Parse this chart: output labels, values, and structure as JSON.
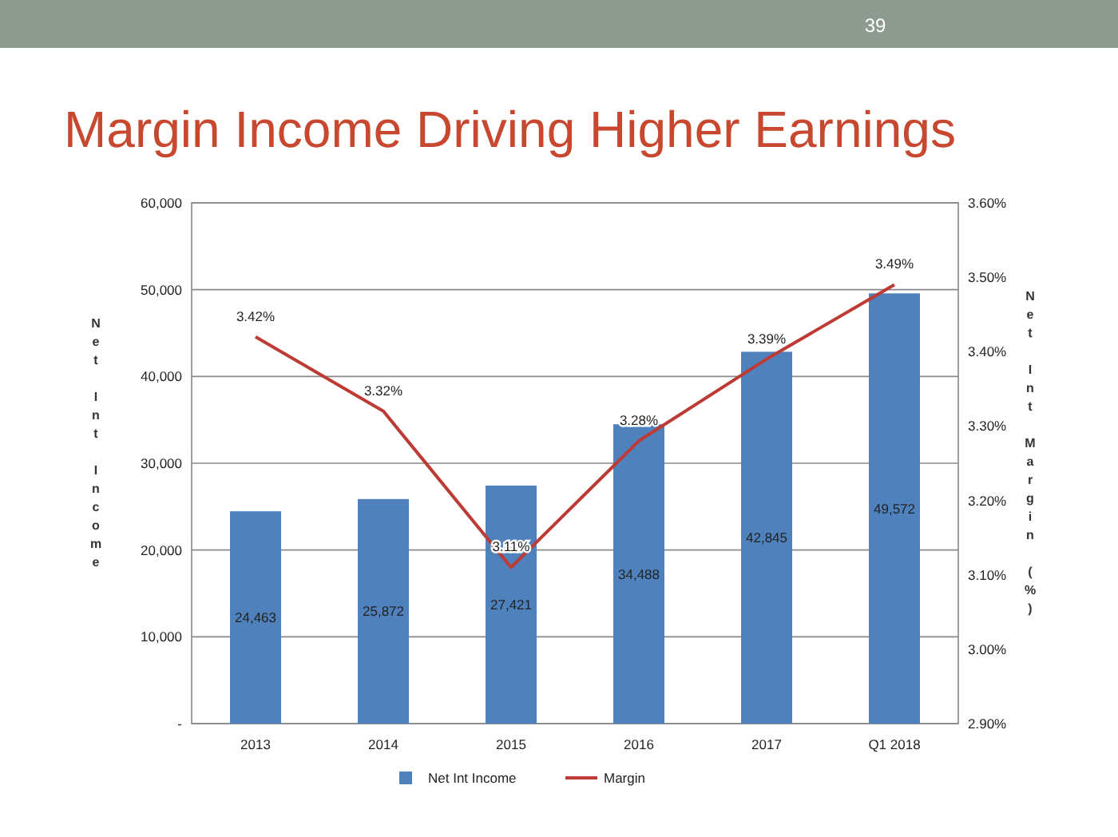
{
  "chart_data": {
    "type": "bar",
    "title": "Margin Income Driving Higher Earnings",
    "ylabel": "Net Int Income",
    "y2label": "Net Int Margin (%)",
    "annotations": [
      "39"
    ],
    "categories": [
      "2013",
      "2014",
      "2015",
      "2016",
      "2017",
      "Q1 2018"
    ],
    "series": [
      {
        "name": "Net Int Income",
        "color": "#4f81bd",
        "values": [
          24463,
          25872,
          27421,
          34488,
          42845,
          49572
        ],
        "value_labels": [
          "24,463",
          "25,872",
          "27,421",
          "34,488",
          "42,845",
          "49,572"
        ]
      },
      {
        "name": "Margin",
        "type": "line",
        "axis": "y2",
        "color": "#be3a34",
        "values": [
          3.42,
          3.32,
          3.11,
          3.28,
          3.39,
          3.49
        ],
        "value_labels": [
          "3.42%",
          "3.32%",
          "3.11%",
          "3.28%",
          "3.39%",
          "3.49%"
        ]
      }
    ],
    "ylim": [
      0,
      60000
    ],
    "yticks": [
      {
        "value": 0,
        "label": "-"
      },
      {
        "value": 10000,
        "label": "10,000"
      },
      {
        "value": 20000,
        "label": "20,000"
      },
      {
        "value": 30000,
        "label": "30,000"
      },
      {
        "value": 40000,
        "label": "40,000"
      },
      {
        "value": 50000,
        "label": "50,000"
      },
      {
        "value": 60000,
        "label": "60,000"
      }
    ],
    "y2lim": [
      2.9,
      3.6
    ],
    "y2ticks": [
      {
        "value": 2.9,
        "label": "2.90%"
      },
      {
        "value": 3.0,
        "label": "3.00%"
      },
      {
        "value": 3.1,
        "label": "3.10%"
      },
      {
        "value": 3.2,
        "label": "3.20%"
      },
      {
        "value": 3.3,
        "label": "3.30%"
      },
      {
        "value": 3.4,
        "label": "3.40%"
      },
      {
        "value": 3.5,
        "label": "3.50%"
      },
      {
        "value": 3.6,
        "label": "3.60%"
      }
    ],
    "grid": "y",
    "legend": "bottom",
    "marker": "none",
    "line_style": "solid"
  }
}
